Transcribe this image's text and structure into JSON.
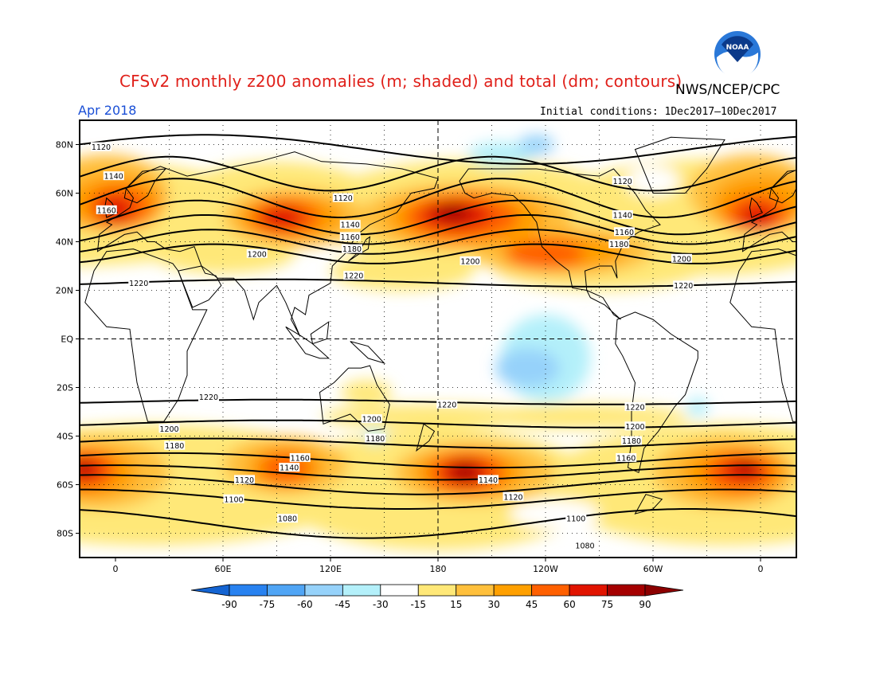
{
  "header": {
    "title": "CFSv2 monthly z200 anomalies (m; shaded) and total (dm; contours)",
    "agency": "NWS/NCEP/CPC",
    "period": "Apr 2018",
    "initial_conditions": "Initial conditions: 1Dec2017–10Dec2017",
    "logo_text": "NOAA"
  },
  "chart_data": {
    "type": "heatmap",
    "map": "global equirectangular, Greenwich-centered",
    "lon_range": [
      -20,
      380
    ],
    "lat_range": [
      -90,
      90
    ],
    "x_tick_labels": [
      {
        "lon": 0,
        "label": "0"
      },
      {
        "lon": 60,
        "label": "60E"
      },
      {
        "lon": 120,
        "label": "120E"
      },
      {
        "lon": 180,
        "label": "180"
      },
      {
        "lon": 240,
        "label": "120W"
      },
      {
        "lon": 300,
        "label": "60W"
      },
      {
        "lon": 360,
        "label": "0"
      }
    ],
    "y_tick_labels": [
      {
        "lat": 80,
        "label": "80N"
      },
      {
        "lat": 60,
        "label": "60N"
      },
      {
        "lat": 40,
        "label": "40N"
      },
      {
        "lat": 20,
        "label": "20N"
      },
      {
        "lat": 0,
        "label": "EQ"
      },
      {
        "lat": -20,
        "label": "20S"
      },
      {
        "lat": -40,
        "label": "40S"
      },
      {
        "lat": -60,
        "label": "60S"
      },
      {
        "lat": -80,
        "label": "80S"
      }
    ],
    "grid": "dotted every 30 degrees; dashed at equator and 180",
    "colorbar": {
      "boundaries": [
        "-90",
        "-75",
        "-60",
        "-45",
        "-30",
        "-15",
        "15",
        "30",
        "45",
        "60",
        "75",
        "90"
      ],
      "colors": [
        "#1464d2",
        "#2882f0",
        "#50a5f5",
        "#96d2fa",
        "#b4f0fa",
        "#ffffff",
        "#ffe878",
        "#ffc03c",
        "#ffa000",
        "#ff6000",
        "#e11400",
        "#a50000",
        "#8c0000"
      ],
      "extend": "both"
    },
    "contour_labels": [
      {
        "label": "1120",
        "lon": -8,
        "lat": 79
      },
      {
        "label": "1140",
        "lon": -1,
        "lat": 67
      },
      {
        "label": "1160",
        "lon": -5,
        "lat": 53
      },
      {
        "label": "1200",
        "lon": 79,
        "lat": 35
      },
      {
        "label": "1220",
        "lon": 13,
        "lat": 23
      },
      {
        "label": "1120",
        "lon": 127,
        "lat": 58
      },
      {
        "label": "1140",
        "lon": 131,
        "lat": 47
      },
      {
        "label": "1160",
        "lon": 131,
        "lat": 42
      },
      {
        "label": "1180",
        "lon": 132,
        "lat": 37
      },
      {
        "label": "1220",
        "lon": 133,
        "lat": 26
      },
      {
        "label": "1200",
        "lon": 198,
        "lat": 32
      },
      {
        "label": "1120",
        "lon": 283,
        "lat": 65
      },
      {
        "label": "1140",
        "lon": 283,
        "lat": 51
      },
      {
        "label": "1160",
        "lon": 284,
        "lat": 44
      },
      {
        "label": "1180",
        "lon": 281,
        "lat": 39
      },
      {
        "label": "1200",
        "lon": 316,
        "lat": 33
      },
      {
        "label": "1220",
        "lon": 317,
        "lat": 22
      },
      {
        "label": "1220",
        "lon": 52,
        "lat": -24
      },
      {
        "label": "1200",
        "lon": 30,
        "lat": -37
      },
      {
        "label": "1180",
        "lon": 33,
        "lat": -44
      },
      {
        "label": "1160",
        "lon": 103,
        "lat": -49
      },
      {
        "label": "1140",
        "lon": 97,
        "lat": -53
      },
      {
        "label": "1120",
        "lon": 72,
        "lat": -58
      },
      {
        "label": "1100",
        "lon": 66,
        "lat": -66
      },
      {
        "label": "1080",
        "lon": 96,
        "lat": -74
      },
      {
        "label": "1200",
        "lon": 143,
        "lat": -33
      },
      {
        "label": "1180",
        "lon": 145,
        "lat": -41
      },
      {
        "label": "1220",
        "lon": 185,
        "lat": -27
      },
      {
        "label": "1140",
        "lon": 208,
        "lat": -58
      },
      {
        "label": "1120",
        "lon": 222,
        "lat": -65
      },
      {
        "label": "1100",
        "lon": 257,
        "lat": -74
      },
      {
        "label": "1080",
        "lon": 262,
        "lat": -85
      },
      {
        "label": "1220",
        "lon": 290,
        "lat": -28
      },
      {
        "label": "1200",
        "lon": 290,
        "lat": -36
      },
      {
        "label": "1180",
        "lon": 288,
        "lat": -42
      },
      {
        "label": "1160",
        "lon": 285,
        "lat": -49
      }
    ]
  }
}
